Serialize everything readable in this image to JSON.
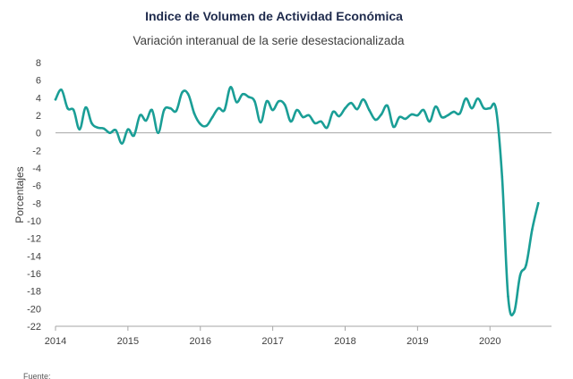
{
  "chart_data": {
    "type": "line",
    "title": "Indice de Volumen de  Actividad Económica",
    "subtitle": "Variación interanual de la serie desestacionalizada",
    "xlabel": "",
    "ylabel": "Porcentajes",
    "ylim": [
      -22,
      8
    ],
    "yticks": [
      8,
      6,
      4,
      2,
      0,
      -2,
      -4,
      -6,
      -8,
      -10,
      -12,
      -14,
      -16,
      -18,
      -20,
      -22
    ],
    "xlim": [
      2014,
      2020.85
    ],
    "xticks": [
      "2014",
      "2015",
      "2016",
      "2017",
      "2018",
      "2019",
      "2020"
    ],
    "grid": false,
    "color": "#1a9e96",
    "series": [
      {
        "x": [
          2014.0,
          2014.083,
          2014.167,
          2014.25,
          2014.333,
          2014.417,
          2014.5,
          2014.583,
          2014.667,
          2014.75,
          2014.833,
          2014.917,
          2015.0,
          2015.083,
          2015.167,
          2015.25,
          2015.333,
          2015.417,
          2015.5,
          2015.583,
          2015.667,
          2015.75,
          2015.833,
          2015.917,
          2016.0,
          2016.083,
          2016.167,
          2016.25,
          2016.333,
          2016.417,
          2016.5,
          2016.583,
          2016.667,
          2016.75,
          2016.833,
          2016.917,
          2017.0,
          2017.083,
          2017.167,
          2017.25,
          2017.333,
          2017.417,
          2017.5,
          2017.583,
          2017.667,
          2017.75,
          2017.833,
          2017.917,
          2018.0,
          2018.083,
          2018.167,
          2018.25,
          2018.333,
          2018.417,
          2018.5,
          2018.583,
          2018.667,
          2018.75,
          2018.833,
          2018.917,
          2019.0,
          2019.083,
          2019.167,
          2019.25,
          2019.333,
          2019.417,
          2019.5,
          2019.583,
          2019.667,
          2019.75,
          2019.833,
          2019.917,
          2020.0,
          2020.083,
          2020.167,
          2020.25,
          2020.333,
          2020.417,
          2020.5,
          2020.583,
          2020.667
        ],
        "values": [
          3.8,
          4.9,
          2.8,
          2.6,
          0.4,
          2.9,
          1.1,
          0.6,
          0.5,
          0.0,
          0.3,
          -1.2,
          0.4,
          -0.3,
          2.0,
          1.4,
          2.6,
          0.0,
          2.6,
          2.8,
          2.5,
          4.6,
          4.4,
          2.2,
          1.0,
          0.8,
          1.8,
          2.8,
          2.6,
          5.2,
          3.5,
          4.4,
          4.1,
          3.6,
          1.2,
          3.6,
          2.6,
          3.6,
          3.2,
          1.3,
          2.6,
          1.8,
          2.0,
          1.1,
          1.3,
          0.6,
          2.4,
          1.9,
          2.8,
          3.4,
          2.7,
          3.8,
          2.6,
          1.5,
          2.1,
          3.1,
          0.7,
          1.8,
          1.6,
          2.1,
          2.0,
          2.6,
          1.3,
          3.0,
          1.8,
          2.0,
          2.4,
          2.2,
          3.9,
          2.8,
          3.9,
          2.8,
          2.8,
          2.7,
          -5.0,
          -18.6,
          -20.4,
          -16.2,
          -15.0,
          -11.0,
          -8.0
        ]
      }
    ]
  },
  "footnote": "Fuente:"
}
